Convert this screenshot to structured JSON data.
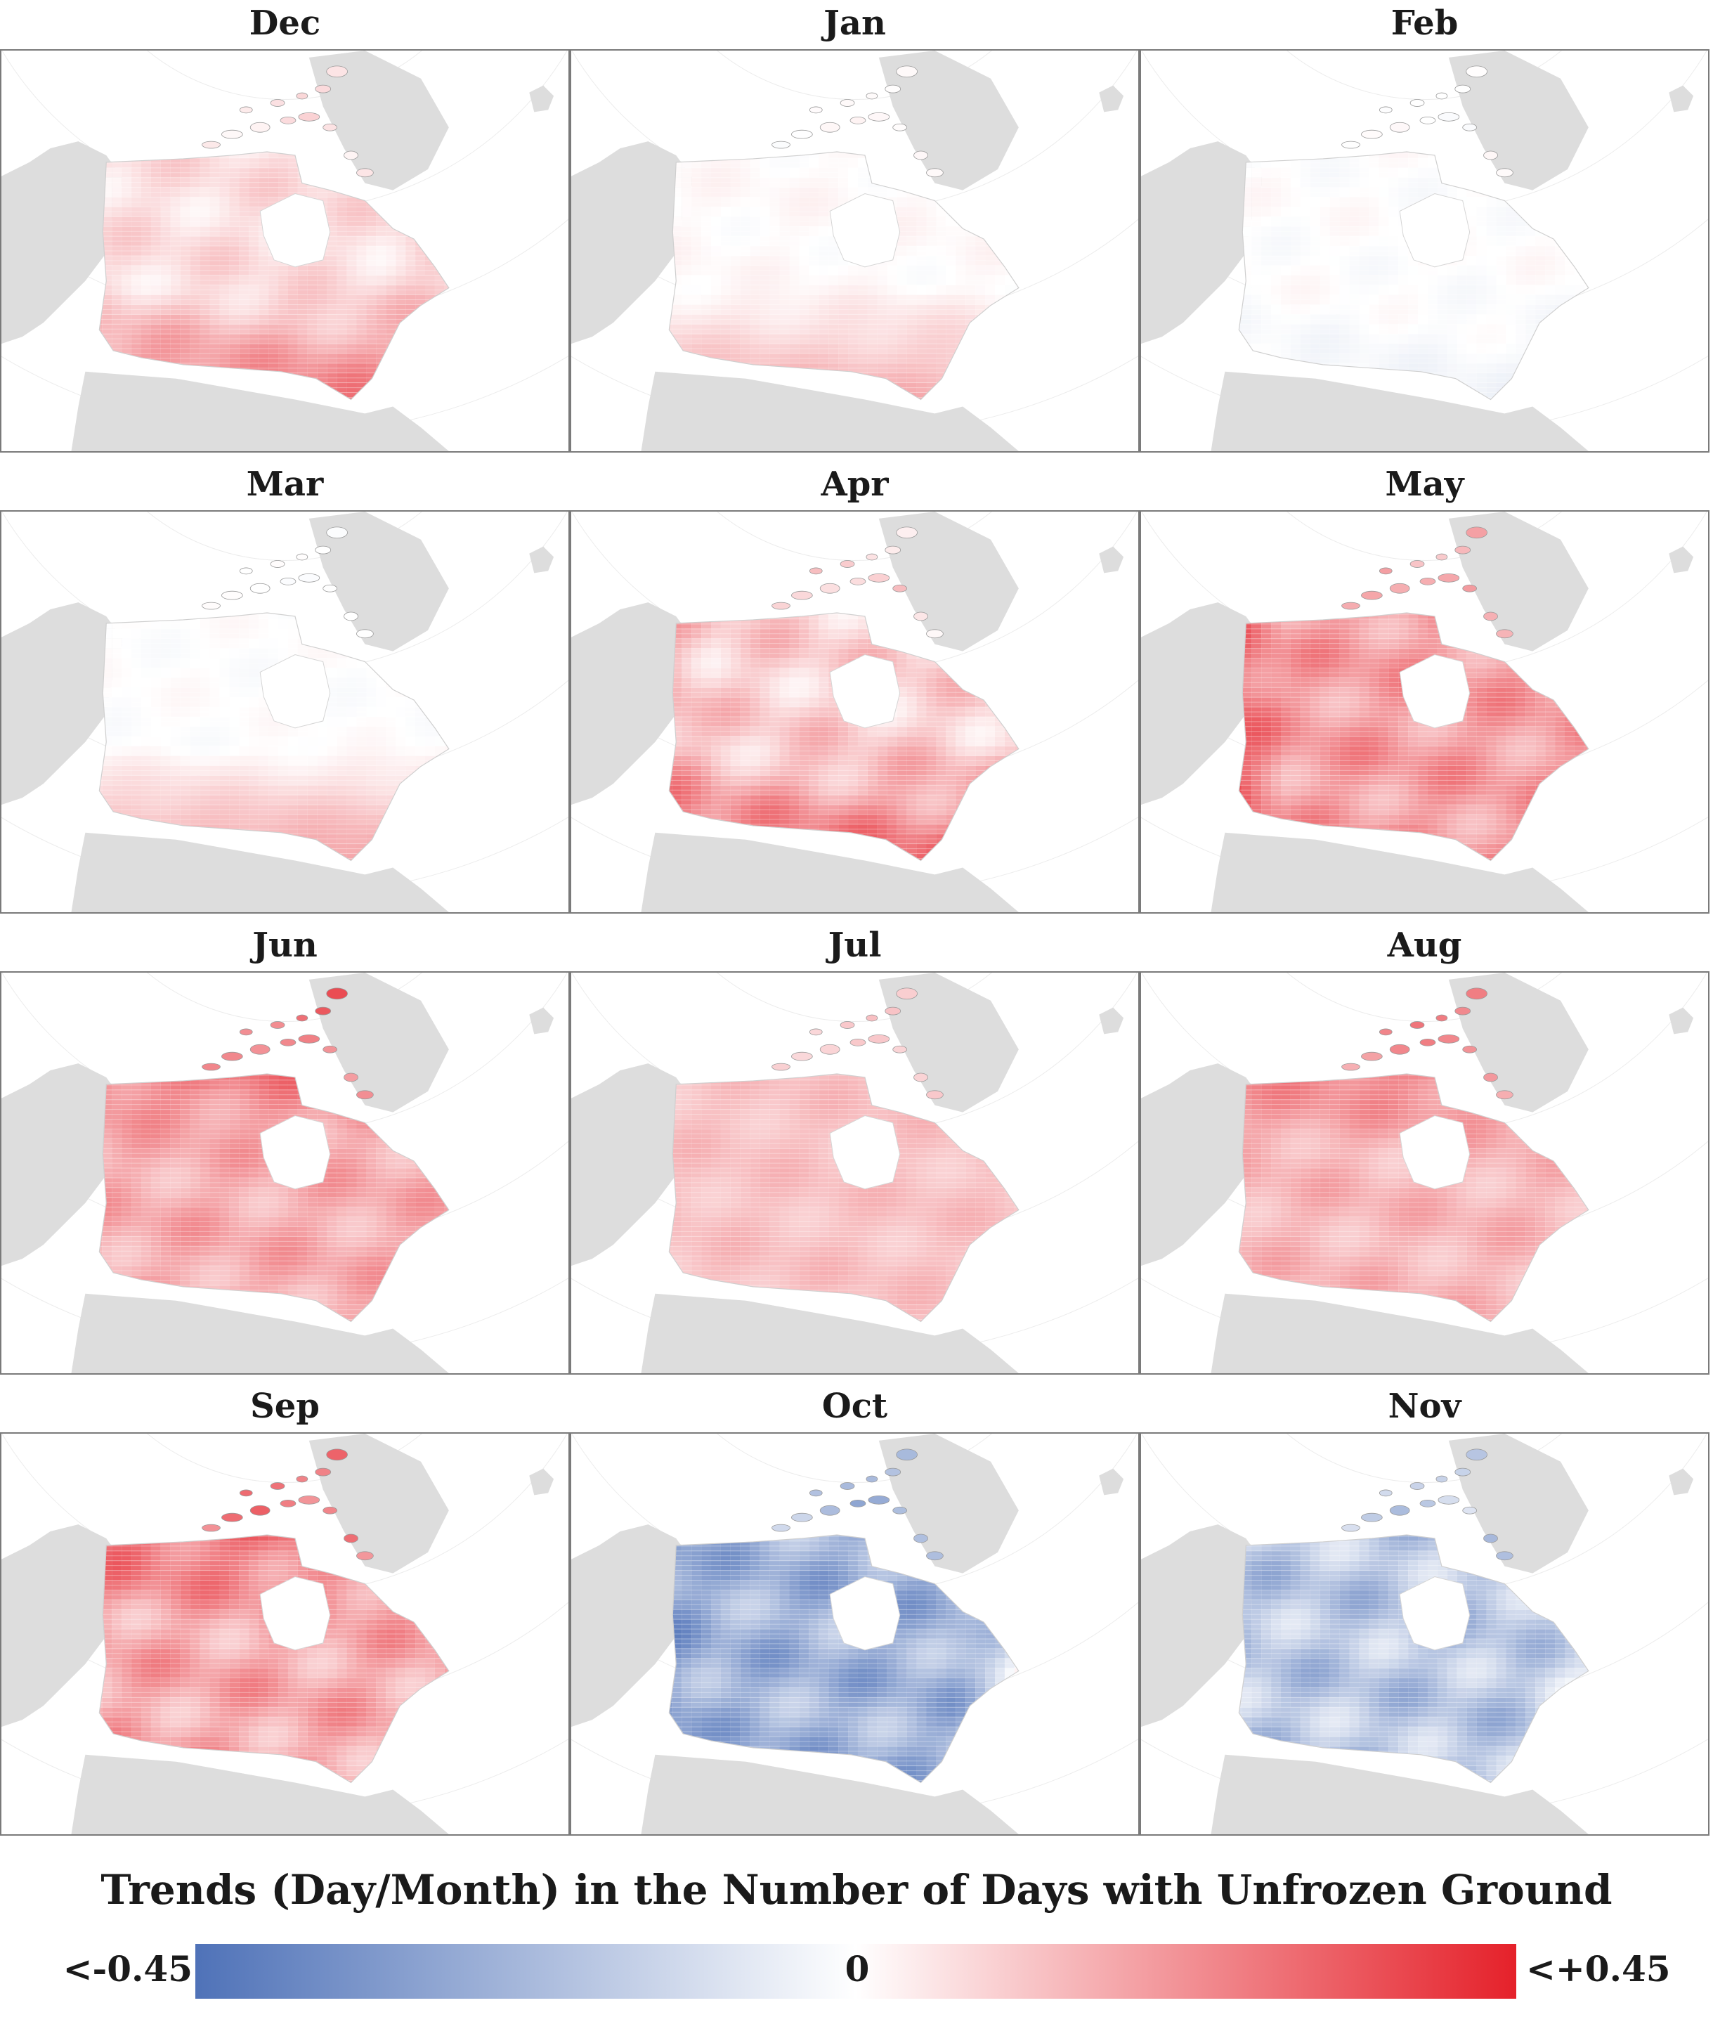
{
  "panels": [
    {
      "month": "Dec"
    },
    {
      "month": "Jan"
    },
    {
      "month": "Feb"
    },
    {
      "month": "Mar"
    },
    {
      "month": "Apr"
    },
    {
      "month": "May"
    },
    {
      "month": "Jun"
    },
    {
      "month": "Jul"
    },
    {
      "month": "Aug"
    },
    {
      "month": "Sep"
    },
    {
      "month": "Oct"
    },
    {
      "month": "Nov"
    }
  ],
  "legend": {
    "title": "Trends (Day/Month) in the Number of Days with Unfrozen Ground",
    "min_label": "<-0.45",
    "mid_label": "0",
    "max_label": "<+0.45",
    "min_value": -0.45,
    "max_value": 0.45,
    "colors": {
      "negative": "#4f72b8",
      "neutral": "#ffffff",
      "positive": "#e5212a"
    }
  },
  "colors": {
    "land": "#dddddd",
    "frame": "#7a7a7a"
  }
}
